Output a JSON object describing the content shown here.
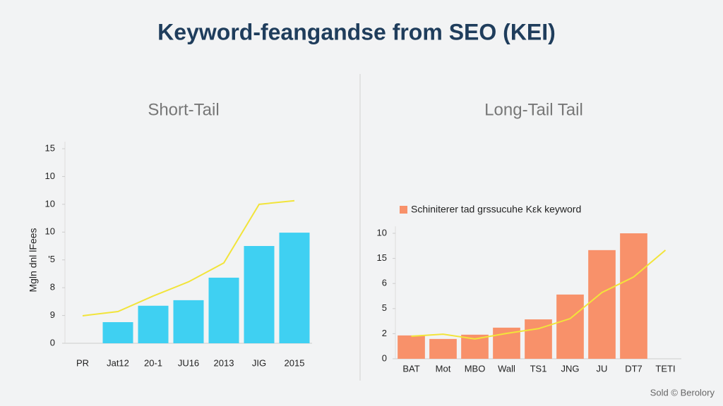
{
  "title": "Keyword-feangandse from SEO (KEI)",
  "footer": "Sold © Berolory",
  "chart_data": [
    {
      "type": "bar",
      "title": "Short-Tail",
      "y_label": "Mgln dnl lFees",
      "categories": [
        "PR",
        "Jat12",
        "20-1",
        "JU16",
        "2013",
        "JIG",
        "2015"
      ],
      "series": [
        {
          "type": "bar",
          "color": "#3fd0f2",
          "values": [
            null,
            0.76,
            1.35,
            1.55,
            2.36,
            3.5,
            3.98
          ]
        },
        {
          "type": "line",
          "color": "#f2e43a",
          "values": [
            0.99,
            1.14,
            1.7,
            2.21,
            2.89,
            5.0,
            5.13
          ]
        }
      ],
      "ylim": [
        0,
        7
      ],
      "yticks": [
        {
          "value": 0,
          "label": "0"
        },
        {
          "value": 1,
          "label": "9"
        },
        {
          "value": 2,
          "label": "8"
        },
        {
          "value": 3,
          "label": "'5"
        },
        {
          "value": 4,
          "label": "10"
        },
        {
          "value": 5,
          "label": "10"
        },
        {
          "value": 6,
          "label": "10"
        },
        {
          "value": 7,
          "label": "15"
        }
      ],
      "grid": false
    },
    {
      "type": "bar",
      "title": "Long-Tail Tail",
      "categories": [
        "BAT",
        "Mot",
        "MBO",
        "Wall",
        "TS1",
        "JNG",
        "JU",
        "DT7",
        "TETI"
      ],
      "series": [
        {
          "type": "bar",
          "name": "Schiniterer tad grssucuhe Kεk keyword",
          "color": "#f8916a",
          "values": [
            0.93,
            0.79,
            0.96,
            1.24,
            1.57,
            2.56,
            4.33,
            5.0,
            null
          ]
        },
        {
          "type": "line",
          "color": "#f2e43a",
          "values": [
            0.9,
            0.98,
            0.79,
            1.01,
            1.2,
            1.6,
            2.64,
            3.26,
            4.33
          ]
        }
      ],
      "ylim": [
        0,
        5
      ],
      "yticks": [
        {
          "value": 0,
          "label": "0"
        },
        {
          "value": 1,
          "label": "2"
        },
        {
          "value": 2,
          "label": "5"
        },
        {
          "value": 3,
          "label": "6"
        },
        {
          "value": 4,
          "label": "15"
        },
        {
          "value": 5,
          "label": "10"
        }
      ],
      "grid": false,
      "legend": "top-left"
    }
  ]
}
